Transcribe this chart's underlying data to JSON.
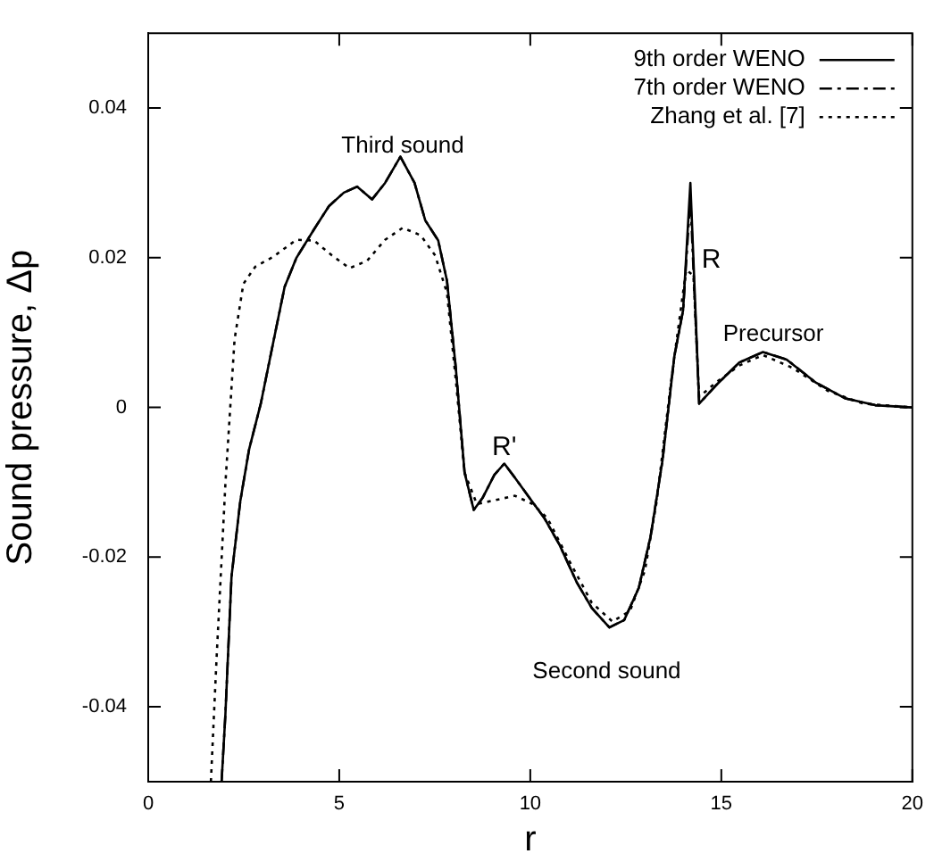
{
  "chart_data": {
    "type": "line",
    "xlabel": "r",
    "ylabel": "Sound pressure, Δp",
    "xlim": [
      0,
      20
    ],
    "xticks": [
      0,
      5,
      10,
      15,
      20
    ],
    "ylim": [
      -0.05,
      0.05
    ],
    "yticks": [
      -0.04,
      -0.02,
      0,
      0.02,
      0.04
    ],
    "grid": false,
    "legend": "top right",
    "marker": "none",
    "series": [
      {
        "name": "9th order WENO",
        "color": "#000000",
        "line_style": "solid",
        "x": [
          1.92,
          2.02,
          2.18,
          2.41,
          2.64,
          2.95,
          3.26,
          3.57,
          3.88,
          4.34,
          4.73,
          5.12,
          5.47,
          5.86,
          6.2,
          6.6,
          6.97,
          7.25,
          7.59,
          7.82,
          8.05,
          8.28,
          8.52,
          8.75,
          9.06,
          9.32,
          9.6,
          9.98,
          10.37,
          10.76,
          11.22,
          11.61,
          12.07,
          12.46,
          12.84,
          13.15,
          13.46,
          13.77,
          14.0,
          14.19,
          14.42,
          14.85,
          15.47,
          16.09,
          16.71,
          17.48,
          18.25,
          19.03,
          20
        ],
        "values": [
          -0.05,
          -0.041,
          -0.0226,
          -0.0125,
          -0.0056,
          0.0006,
          0.0084,
          0.0161,
          0.02,
          0.0238,
          0.0269,
          0.0287,
          0.0295,
          0.0278,
          0.03,
          0.0335,
          0.03,
          0.025,
          0.0223,
          0.0169,
          0.0053,
          -0.0087,
          -0.0137,
          -0.0121,
          -0.009,
          -0.0075,
          -0.0094,
          -0.0121,
          -0.0148,
          -0.0183,
          -0.0234,
          -0.0268,
          -0.0294,
          -0.0284,
          -0.0241,
          -0.0172,
          -0.0071,
          0.0068,
          0.013,
          0.03,
          0.0005,
          0.0029,
          0.006,
          0.0074,
          0.0064,
          0.0033,
          0.0012,
          0.0003,
          0
        ]
      },
      {
        "name": "7th order WENO",
        "color": "#000000",
        "line_style": "dashed",
        "x": [
          1.92,
          2.02,
          2.18,
          2.41,
          2.64,
          2.95,
          3.26,
          3.57,
          3.88,
          4.34,
          4.73,
          5.12,
          5.47,
          5.86,
          6.2,
          6.6,
          6.97,
          7.25,
          7.59,
          7.82,
          8.05,
          8.28,
          8.52,
          8.75,
          9.06,
          9.32,
          9.6,
          9.98,
          10.37,
          10.76,
          11.22,
          11.61,
          12.07,
          12.46,
          12.84,
          13.15,
          13.46,
          13.77,
          14.0,
          14.19,
          14.42,
          14.85,
          15.47,
          16.09,
          16.71,
          17.48,
          18.25,
          19.03,
          20
        ],
        "values": [
          -0.05,
          -0.041,
          -0.0226,
          -0.0125,
          -0.0056,
          0.0006,
          0.0084,
          0.0161,
          0.02,
          0.0238,
          0.0269,
          0.0287,
          0.0295,
          0.0278,
          0.03,
          0.0335,
          0.03,
          0.025,
          0.0223,
          0.0169,
          0.0053,
          -0.0087,
          -0.0137,
          -0.0121,
          -0.009,
          -0.0075,
          -0.0094,
          -0.0121,
          -0.0148,
          -0.0183,
          -0.0234,
          -0.0268,
          -0.0294,
          -0.0284,
          -0.0241,
          -0.0172,
          -0.0071,
          0.0068,
          0.013,
          0.028,
          0.0005,
          0.0029,
          0.006,
          0.0074,
          0.0064,
          0.0033,
          0.0012,
          0.0003,
          0
        ]
      },
      {
        "name": "Zhang et al. [7]",
        "color": "#000000",
        "line_style": "dotted",
        "x": [
          1.64,
          1.79,
          2.02,
          2.26,
          2.49,
          2.8,
          3.26,
          3.88,
          4.34,
          4.81,
          5.27,
          5.73,
          6.2,
          6.66,
          7.13,
          7.51,
          7.82,
          8.05,
          8.28,
          8.6,
          8.98,
          9.6,
          10.06,
          10.45,
          11.0,
          11.61,
          12.15,
          12.61,
          13.0,
          13.31,
          13.69,
          14.08,
          14.27,
          14.42,
          14.85,
          15.47,
          16.09,
          16.86,
          17.79,
          18.72,
          20
        ],
        "values": [
          -0.05,
          -0.0334,
          -0.0102,
          0.0091,
          0.0165,
          0.0188,
          0.0201,
          0.0224,
          0.0223,
          0.0203,
          0.0186,
          0.0196,
          0.0224,
          0.024,
          0.023,
          0.0203,
          0.0153,
          0.0037,
          -0.0087,
          -0.0129,
          -0.0125,
          -0.0118,
          -0.0129,
          -0.0148,
          -0.0203,
          -0.0261,
          -0.0286,
          -0.0272,
          -0.0218,
          -0.0125,
          0.0037,
          0.0184,
          0.0176,
          0.0014,
          0.0033,
          0.0056,
          0.007,
          0.0053,
          0.0022,
          0.0005,
          0
        ]
      }
    ],
    "annotations": [
      "Third sound",
      "R'",
      "Second sound",
      "R",
      "Precursor"
    ]
  }
}
